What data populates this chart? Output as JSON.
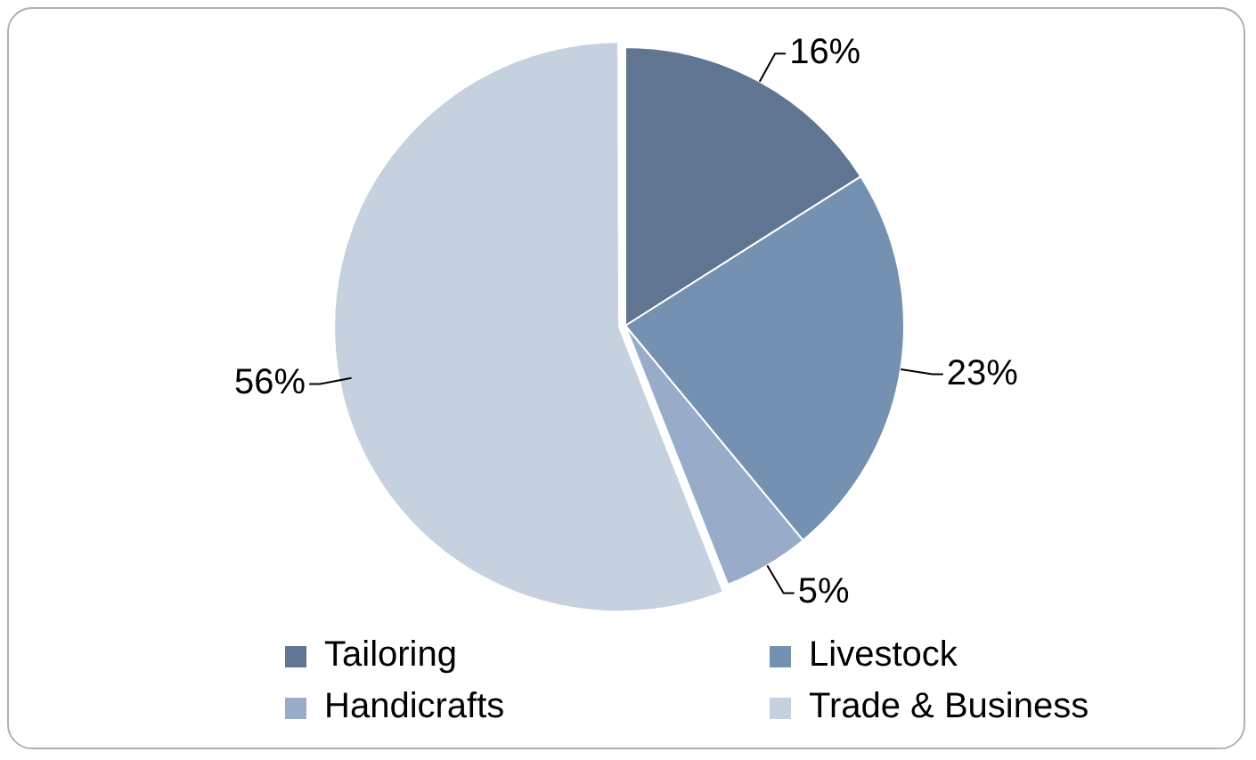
{
  "chart_data": {
    "type": "pie",
    "categories": [
      "Tailoring",
      "Livestock",
      "Handicrafts",
      "Trade & Business"
    ],
    "values": [
      16,
      23,
      5,
      56
    ],
    "colors": [
      "#5f7591",
      "#7591b1",
      "#98acc9",
      "#c6d1e0"
    ],
    "value_labels": [
      "16%",
      "23%",
      "5%",
      "56%"
    ],
    "legend": "bottom"
  }
}
